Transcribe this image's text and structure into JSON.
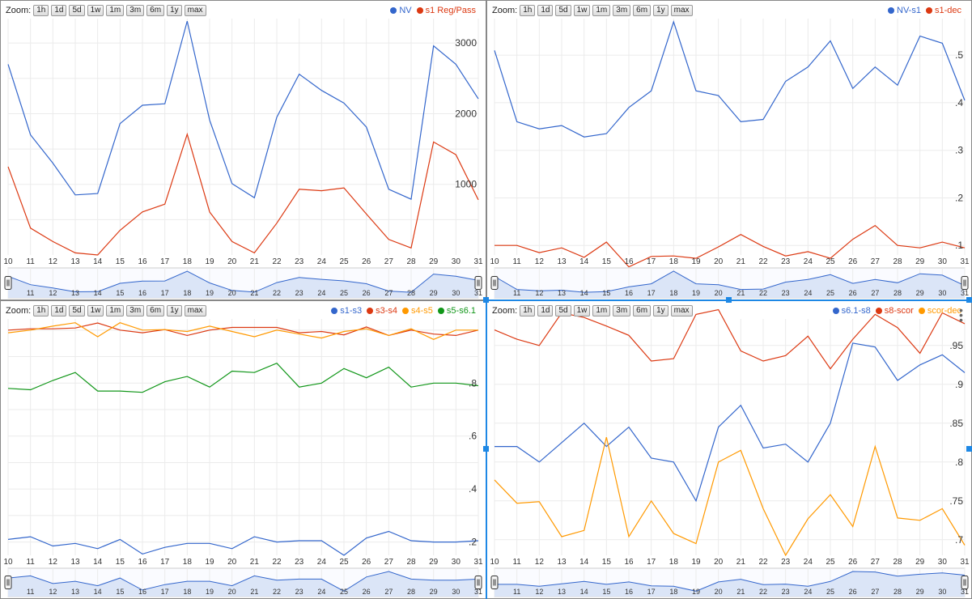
{
  "zoom_label": "Zoom:",
  "zoom_buttons": [
    "1h",
    "1d",
    "5d",
    "1w",
    "1m",
    "3m",
    "6m",
    "1y",
    "max"
  ],
  "colors": {
    "blue": "#3366cc",
    "red": "#dc3912",
    "orange": "#ff9900",
    "green": "#109618",
    "grid": "#ebebeb",
    "selection": "#1e88e5"
  },
  "chart_data": [
    {
      "type": "line",
      "x": [
        10,
        11,
        12,
        13,
        14,
        15,
        16,
        17,
        18,
        19,
        20,
        21,
        22,
        23,
        24,
        25,
        26,
        27,
        28,
        29,
        30,
        31
      ],
      "ylim": [
        0,
        3300
      ],
      "ticks": [
        {
          "v": 1000,
          "label": "1000"
        },
        {
          "v": 2000,
          "label": "2000"
        },
        {
          "v": 3000,
          "label": "3000"
        }
      ],
      "gridlines": [
        500,
        1000,
        1500,
        2000,
        2500,
        3000
      ],
      "series": [
        {
          "name": "NV",
          "color": "#3366cc",
          "values": [
            2700,
            1700,
            1300,
            850,
            870,
            1860,
            2120,
            2140,
            3310,
            1910,
            1010,
            810,
            1950,
            2560,
            2330,
            2150,
            1810,
            930,
            790,
            2960,
            2700,
            2210
          ]
        },
        {
          "name": "s1 Reg/Pass",
          "color": "#dc3912",
          "values": [
            1250,
            380,
            190,
            30,
            0,
            350,
            610,
            720,
            1710,
            610,
            190,
            30,
            450,
            930,
            910,
            950,
            580,
            220,
            100,
            1600,
            1420,
            780
          ]
        }
      ],
      "nav_series": 0
    },
    {
      "type": "line",
      "x": [
        10,
        11,
        12,
        13,
        14,
        15,
        16,
        17,
        18,
        19,
        20,
        21,
        22,
        23,
        24,
        25,
        26,
        27,
        28,
        29,
        30,
        31
      ],
      "ylim": [
        0.08,
        0.57
      ],
      "ticks": [
        {
          "v": 0.1,
          "label": ".1"
        },
        {
          "v": 0.2,
          "label": ".2"
        },
        {
          "v": 0.3,
          "label": ".3"
        },
        {
          "v": 0.4,
          "label": ".4"
        },
        {
          "v": 0.5,
          "label": ".5"
        }
      ],
      "gridlines": [
        0.1,
        0.2,
        0.3,
        0.4,
        0.5
      ],
      "series": [
        {
          "name": "NV-s1",
          "color": "#3366cc",
          "values": [
            0.51,
            0.36,
            0.345,
            0.352,
            0.328,
            0.335,
            0.39,
            0.425,
            0.57,
            0.425,
            0.415,
            0.36,
            0.365,
            0.445,
            0.475,
            0.53,
            0.43,
            0.475,
            0.437,
            0.54,
            0.525,
            0.405
          ]
        },
        {
          "name": "s1-dec",
          "color": "#dc3912",
          "values": [
            0.1,
            0.1,
            0.085,
            0.095,
            0.075,
            0.107,
            0.055,
            0.077,
            0.078,
            0.073,
            0.097,
            0.123,
            0.098,
            0.078,
            0.087,
            0.073,
            0.113,
            0.142,
            0.1,
            0.095,
            0.107,
            0.095
          ]
        }
      ],
      "nav_series": 0
    },
    {
      "type": "line",
      "x": [
        10,
        11,
        12,
        13,
        14,
        15,
        16,
        17,
        18,
        19,
        20,
        21,
        22,
        23,
        24,
        25,
        26,
        27,
        28,
        29,
        30,
        31
      ],
      "ylim": [
        0.15,
        1.03
      ],
      "ticks": [
        {
          "v": 0.2,
          "label": ".2"
        },
        {
          "v": 0.4,
          "label": ".4"
        },
        {
          "v": 0.6,
          "label": ".6"
        },
        {
          "v": 0.8,
          "label": ".8"
        }
      ],
      "gridlines": [
        0.2,
        0.3,
        0.4,
        0.5,
        0.6,
        0.7,
        0.8,
        0.9,
        1.0
      ],
      "series": [
        {
          "name": "s1-s3",
          "color": "#3366cc",
          "values": [
            0.21,
            0.22,
            0.185,
            0.195,
            0.175,
            0.21,
            0.155,
            0.18,
            0.195,
            0.195,
            0.175,
            0.22,
            0.2,
            0.205,
            0.205,
            0.15,
            0.215,
            0.24,
            0.205,
            0.2,
            0.2,
            0.205
          ]
        },
        {
          "name": "s3-s4",
          "color": "#dc3912",
          "values": [
            1.0,
            1.005,
            1.005,
            1.008,
            1.027,
            1.0,
            0.99,
            1.002,
            0.98,
            1.0,
            1.01,
            1.01,
            1.01,
            0.99,
            0.995,
            0.982,
            1.012,
            0.98,
            1.0,
            0.985,
            0.98,
            1.0
          ]
        },
        {
          "name": "s4-s5",
          "color": "#ff9900",
          "values": [
            0.99,
            1.0,
            1.015,
            1.028,
            0.975,
            1.028,
            1.0,
            1.002,
            0.995,
            1.015,
            0.995,
            0.975,
            1.0,
            0.985,
            0.97,
            0.995,
            1.005,
            0.98,
            1.005,
            0.965,
            1.0,
            1.0
          ]
        },
        {
          "name": "s5-s6.1",
          "color": "#109618",
          "values": [
            0.78,
            0.775,
            0.81,
            0.84,
            0.77,
            0.77,
            0.765,
            0.805,
            0.825,
            0.785,
            0.845,
            0.84,
            0.875,
            0.785,
            0.8,
            0.855,
            0.82,
            0.86,
            0.785,
            0.8,
            0.8,
            0.79
          ]
        }
      ],
      "nav_series": 0
    },
    {
      "type": "line",
      "x": [
        10,
        11,
        12,
        13,
        14,
        15,
        16,
        17,
        18,
        19,
        20,
        21,
        22,
        23,
        24,
        25,
        26,
        27,
        28,
        29,
        30,
        31
      ],
      "ylim": [
        0.68,
        0.98
      ],
      "ticks": [
        {
          "v": 0.7,
          "label": ".7"
        },
        {
          "v": 0.75,
          "label": ".75"
        },
        {
          "v": 0.8,
          "label": ".8"
        },
        {
          "v": 0.85,
          "label": ".85"
        },
        {
          "v": 0.9,
          "label": ".9"
        },
        {
          "v": 0.95,
          "label": ".95"
        }
      ],
      "gridlines": [
        0.7,
        0.75,
        0.8,
        0.85,
        0.9,
        0.95
      ],
      "series": [
        {
          "name": "s6.1-s8",
          "color": "#3366cc",
          "values": [
            0.82,
            0.82,
            0.8,
            0.825,
            0.85,
            0.82,
            0.845,
            0.805,
            0.8,
            0.75,
            0.845,
            0.873,
            0.818,
            0.823,
            0.8,
            0.85,
            0.953,
            0.948,
            0.905,
            0.925,
            0.938,
            0.915
          ]
        },
        {
          "name": "s8-scor",
          "color": "#dc3912",
          "values": [
            0.97,
            0.958,
            0.95,
            0.992,
            0.986,
            0.975,
            0.963,
            0.93,
            0.933,
            0.99,
            0.996,
            0.943,
            0.93,
            0.937,
            0.962,
            0.92,
            0.958,
            0.99,
            0.973,
            0.94,
            0.992,
            0.978
          ]
        },
        {
          "name": "scor-dec",
          "color": "#ff9900",
          "values": [
            0.777,
            0.747,
            0.749,
            0.704,
            0.712,
            0.832,
            0.704,
            0.75,
            0.708,
            0.695,
            0.8,
            0.815,
            0.74,
            0.68,
            0.727,
            0.758,
            0.717,
            0.82,
            0.728,
            0.725,
            0.74,
            0.693
          ]
        }
      ],
      "nav_series": 0
    }
  ]
}
